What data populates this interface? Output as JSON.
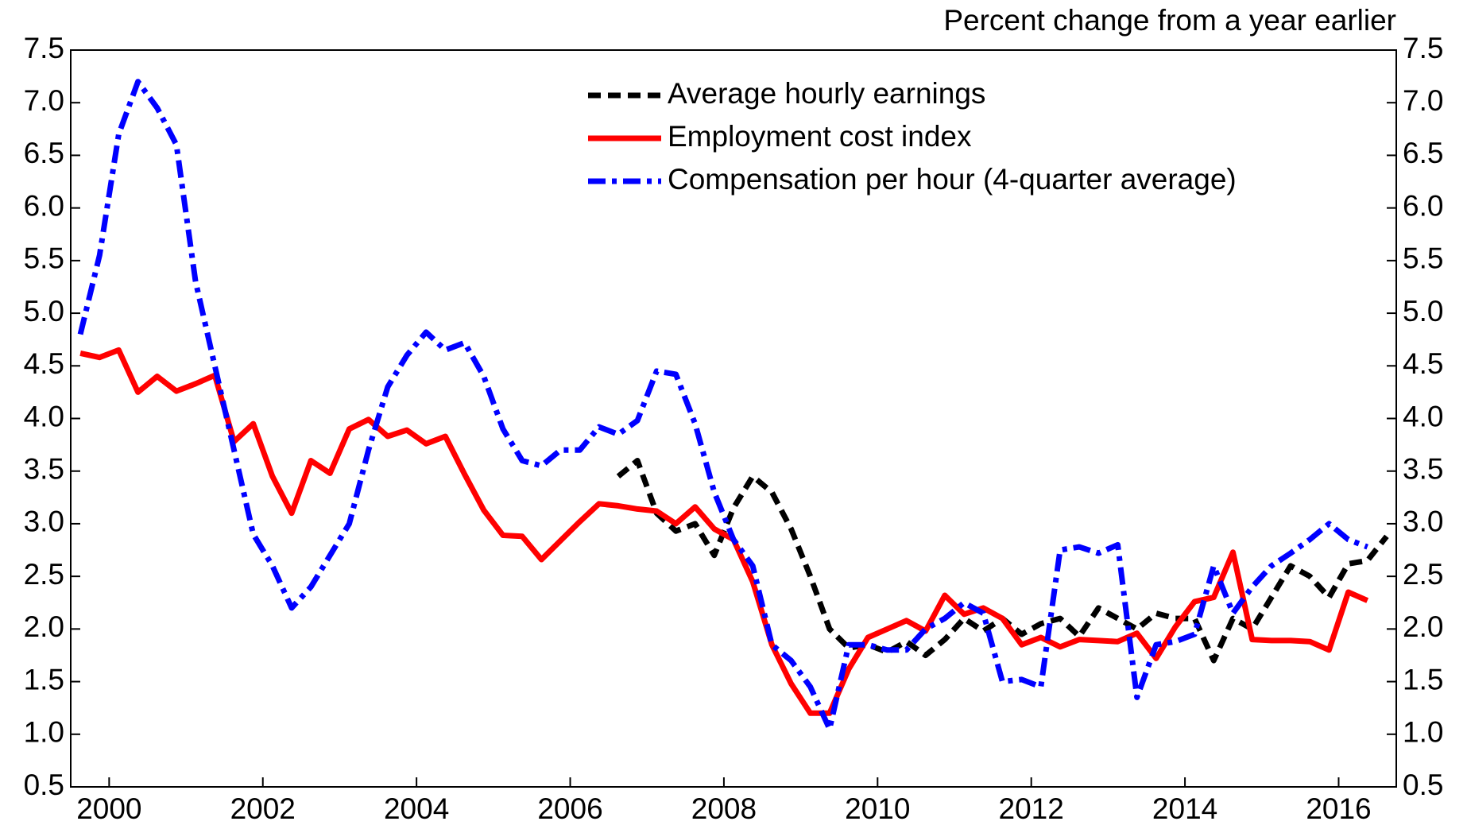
{
  "chart_data": {
    "type": "line",
    "subtitle": "Percent change from a year earlier",
    "x": [
      2000.125,
      2000.375,
      2000.625,
      2000.875,
      2001.125,
      2001.375,
      2001.625,
      2001.875,
      2002.125,
      2002.375,
      2002.625,
      2002.875,
      2003.125,
      2003.375,
      2003.625,
      2003.875,
      2004.125,
      2004.375,
      2004.625,
      2004.875,
      2005.125,
      2005.375,
      2005.625,
      2005.875,
      2006.125,
      2006.375,
      2006.625,
      2006.875,
      2007.125,
      2007.375,
      2007.625,
      2007.875,
      2008.125,
      2008.375,
      2008.625,
      2008.875,
      2009.125,
      2009.375,
      2009.625,
      2009.875,
      2010.125,
      2010.375,
      2010.625,
      2010.875,
      2011.125,
      2011.375,
      2011.625,
      2011.875,
      2012.125,
      2012.375,
      2012.625,
      2012.875,
      2013.125,
      2013.375,
      2013.625,
      2013.875,
      2014.125,
      2014.375,
      2014.625,
      2014.875,
      2015.125,
      2015.375,
      2015.625,
      2015.875,
      2016.125,
      2016.375,
      2016.625,
      2016.875,
      2017.125
    ],
    "series": [
      {
        "name": "Average hourly earnings",
        "color": "#000000",
        "dash": "dash",
        "values": [
          null,
          null,
          null,
          null,
          null,
          null,
          null,
          null,
          null,
          null,
          null,
          null,
          null,
          null,
          null,
          null,
          null,
          null,
          null,
          null,
          null,
          null,
          null,
          null,
          null,
          null,
          null,
          null,
          3.45,
          3.6,
          3.1,
          2.93,
          3.0,
          2.7,
          3.15,
          3.45,
          3.3,
          2.95,
          2.5,
          2.0,
          1.82,
          1.85,
          1.78,
          1.88,
          1.75,
          1.9,
          2.1,
          1.98,
          2.1,
          1.95,
          2.05,
          2.1,
          1.93,
          2.2,
          2.1,
          2.0,
          2.15,
          2.1,
          2.1,
          1.7,
          2.1,
          2.0,
          2.3,
          2.6,
          2.5,
          2.3,
          2.62,
          2.65,
          2.88
        ]
      },
      {
        "name": "Employment cost index",
        "color": "#ff0000",
        "dash": "solid",
        "values": [
          4.62,
          4.58,
          4.65,
          4.25,
          4.4,
          4.26,
          4.33,
          4.41,
          3.78,
          3.95,
          3.45,
          3.1,
          3.6,
          3.48,
          3.9,
          3.99,
          3.83,
          3.89,
          3.76,
          3.83,
          3.47,
          3.13,
          2.89,
          2.88,
          2.66,
          2.84,
          3.02,
          3.19,
          3.17,
          3.14,
          3.12,
          3.0,
          3.16,
          2.95,
          2.85,
          2.45,
          1.85,
          1.48,
          1.2,
          1.2,
          1.62,
          1.92,
          2.0,
          2.08,
          1.98,
          2.32,
          2.14,
          2.2,
          2.1,
          1.85,
          1.92,
          1.83,
          1.9,
          1.89,
          1.88,
          1.96,
          1.72,
          2.02,
          2.26,
          2.3,
          2.73,
          1.9,
          1.89,
          1.89,
          1.88,
          1.8,
          2.35,
          2.27,
          null
        ]
      },
      {
        "name": "Compensation per hour (4-quarter average)",
        "color": "#0000ff",
        "dash": "dashdot",
        "values": [
          4.8,
          5.55,
          6.7,
          7.2,
          6.95,
          6.6,
          5.3,
          4.5,
          3.7,
          2.9,
          2.6,
          2.2,
          2.4,
          2.7,
          3.0,
          3.7,
          4.3,
          4.6,
          4.82,
          4.65,
          4.72,
          4.4,
          3.9,
          3.6,
          3.55,
          3.7,
          3.7,
          3.92,
          3.85,
          3.98,
          4.45,
          4.42,
          3.95,
          3.3,
          2.85,
          2.6,
          1.85,
          1.7,
          1.45,
          1.05,
          1.85,
          1.85,
          1.8,
          1.8,
          2.0,
          2.1,
          2.25,
          2.15,
          1.5,
          1.52,
          1.45,
          2.75,
          2.78,
          2.72,
          2.8,
          1.35,
          1.85,
          1.88,
          1.95,
          2.6,
          2.15,
          2.4,
          2.6,
          2.72,
          2.85,
          3.0,
          2.85,
          2.78,
          null
        ]
      }
    ],
    "xlim": [
      2000,
      2017.25
    ],
    "xticks": [
      {
        "value": 2000.5,
        "label": "2000"
      },
      {
        "value": 2002.5,
        "label": "2002"
      },
      {
        "value": 2004.5,
        "label": "2004"
      },
      {
        "value": 2006.5,
        "label": "2006"
      },
      {
        "value": 2008.5,
        "label": "2008"
      },
      {
        "value": 2010.5,
        "label": "2010"
      },
      {
        "value": 2012.5,
        "label": "2012"
      },
      {
        "value": 2014.5,
        "label": "2014"
      },
      {
        "value": 2016.5,
        "label": "2016"
      }
    ],
    "ylim": [
      0.5,
      7.5
    ],
    "yticks": [
      0.5,
      {
        "value": 1,
        "label": "1.0"
      },
      1.5,
      {
        "value": 2,
        "label": "2.0"
      },
      2.5,
      {
        "value": 3,
        "label": "3.0"
      },
      3.5,
      {
        "value": 4,
        "label": "4.0"
      },
      4.5,
      {
        "value": 5,
        "label": "5.0"
      },
      5.5,
      {
        "value": 6,
        "label": "6.0"
      },
      6.5,
      {
        "value": 7,
        "label": "7.0"
      },
      7.5
    ],
    "y2lim": [
      0.5,
      7.5
    ],
    "y2ticks": [
      0.5,
      {
        "value": 1,
        "label": "1.0"
      },
      1.5,
      {
        "value": 2,
        "label": "2.0"
      },
      2.5,
      {
        "value": 3,
        "label": "3.0"
      },
      3.5,
      {
        "value": 4,
        "label": "4.0"
      },
      4.5,
      {
        "value": 5,
        "label": "5.0"
      },
      5.5,
      {
        "value": 6,
        "label": "6.0"
      },
      6.5,
      {
        "value": 7,
        "label": "7.0"
      },
      7.5
    ],
    "legend": "top",
    "grid": false
  }
}
